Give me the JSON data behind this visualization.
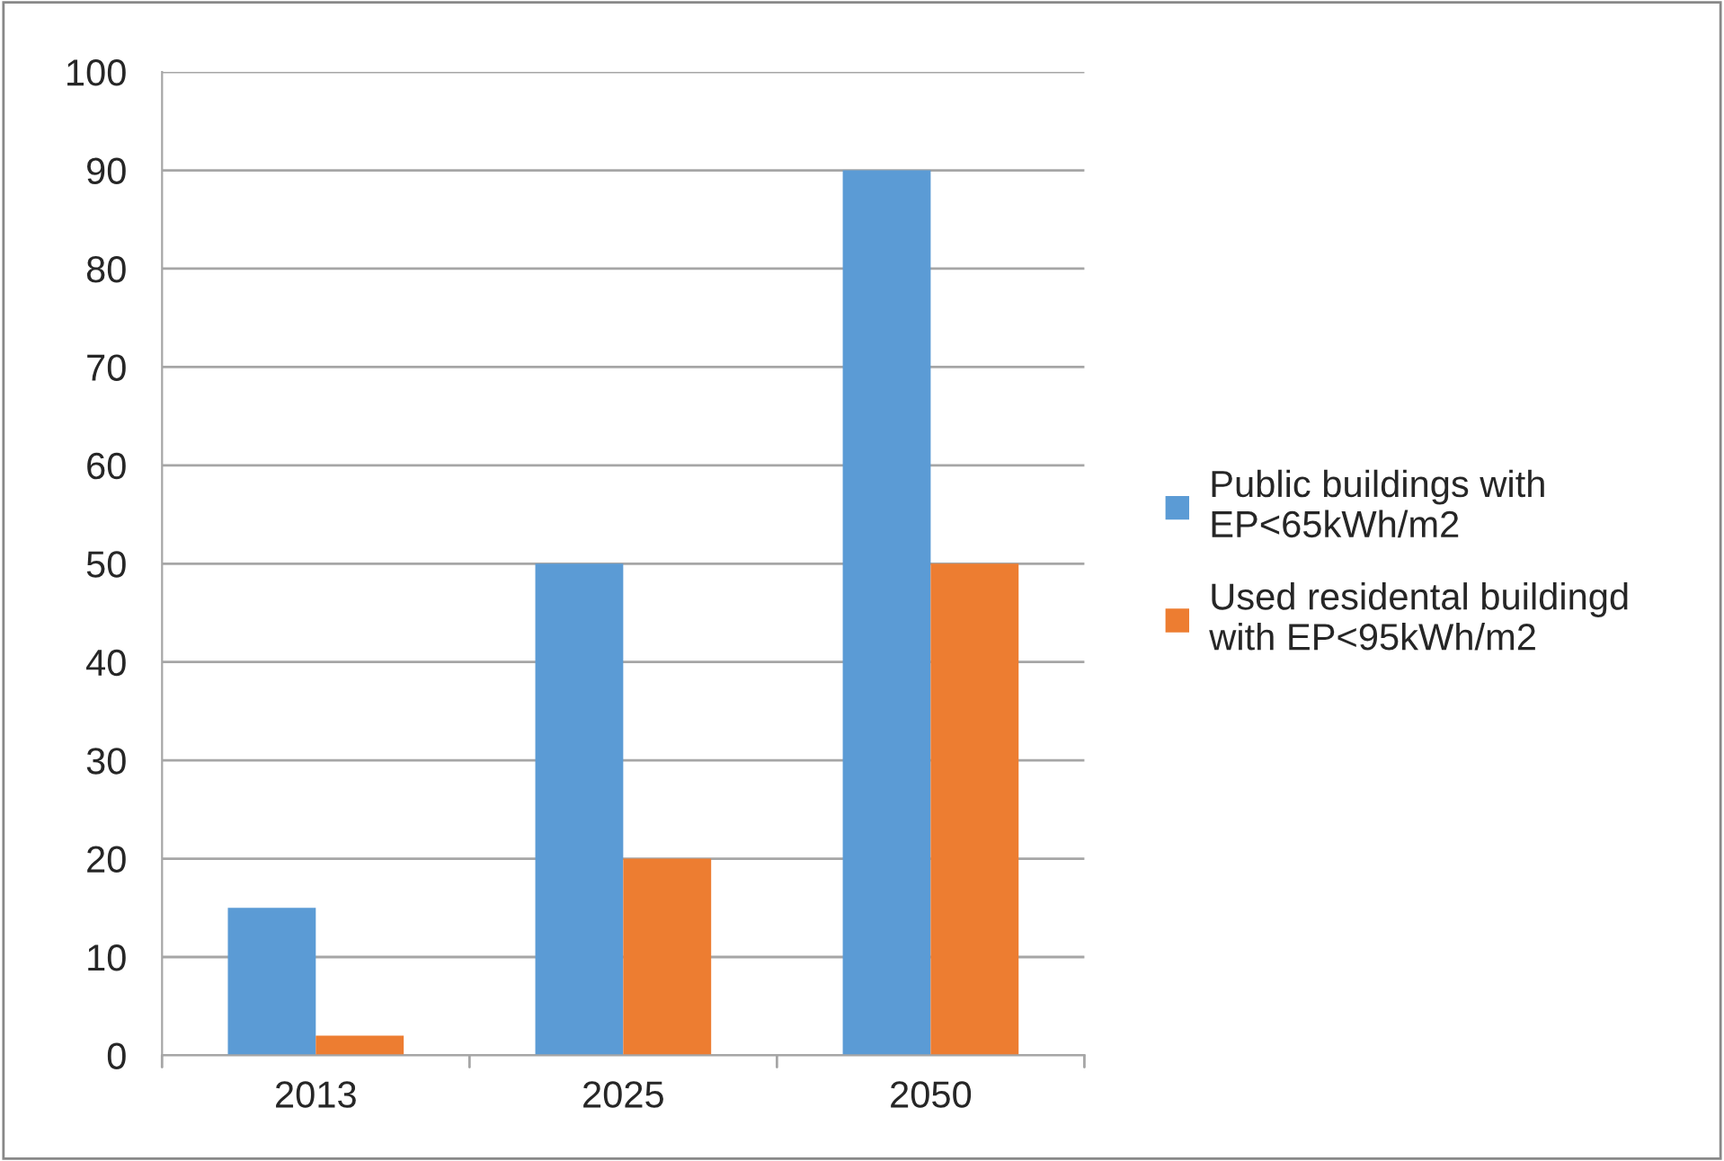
{
  "chart_data": {
    "type": "bar",
    "categories": [
      "2013",
      "2025",
      "2050"
    ],
    "series": [
      {
        "name": "Public buildings with\nEP<65kWh/m2",
        "color": "#5b9bd5",
        "values": [
          15,
          50,
          90
        ]
      },
      {
        "name": "Used residental buildingd\nwith EP<95kWh/m2",
        "color": "#ed7d31",
        "values": [
          2,
          20,
          50
        ]
      }
    ],
    "ylim": [
      0,
      100
    ],
    "yticks": [
      0,
      10,
      20,
      30,
      40,
      50,
      60,
      70,
      80,
      90,
      100
    ],
    "grid": "y",
    "legend": "right"
  }
}
